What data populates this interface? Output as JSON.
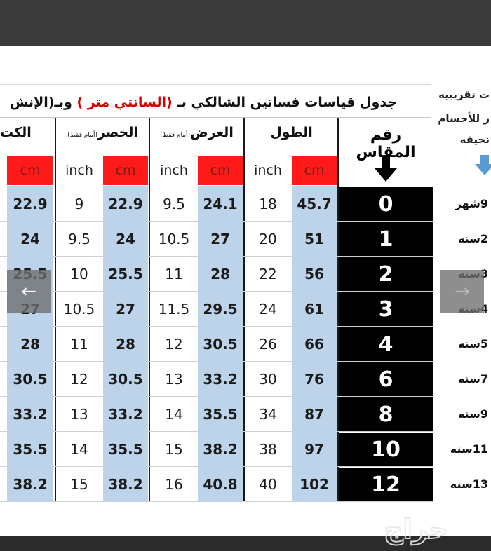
{
  "title": {
    "part1": "جدول قياسات فساتين الشالكي بـ",
    "red": "(السانتي متر )",
    "part2": "وبـ(الإنش"
  },
  "right_header": {
    "line1": "ت تقريبيه",
    "line2": "ر للأجسام",
    "line3": "نحيفه"
  },
  "size_header": "رقم المقاس",
  "columns": {
    "length": {
      "label": "الطول",
      "note": ""
    },
    "width": {
      "label": "العرض",
      "note": "(أمام فقط)"
    },
    "waist": {
      "label": "الخصر",
      "note": "(أمام فقط)"
    },
    "shoulder": {
      "label": "الكت",
      "note": ""
    }
  },
  "units": {
    "cm": "cm",
    "inch": "inch"
  },
  "rows": [
    {
      "size": "0",
      "age": "9شهر",
      "length_cm": "45.7",
      "length_in": "18",
      "width_cm": "24.1",
      "width_in": "9.5",
      "waist_cm": "22.9",
      "waist_in": "9",
      "shoulder_cm": "22.9"
    },
    {
      "size": "1",
      "age": "2سنه",
      "length_cm": "51",
      "length_in": "20",
      "width_cm": "27",
      "width_in": "10.5",
      "waist_cm": "24",
      "waist_in": "9.5",
      "shoulder_cm": "24"
    },
    {
      "size": "2",
      "age": "3سنه",
      "length_cm": "56",
      "length_in": "22",
      "width_cm": "28",
      "width_in": "11",
      "waist_cm": "25.5",
      "waist_in": "10",
      "shoulder_cm": "25.5"
    },
    {
      "size": "3",
      "age": "4سنه",
      "length_cm": "61",
      "length_in": "24",
      "width_cm": "29.5",
      "width_in": "11.5",
      "waist_cm": "27",
      "waist_in": "10.5",
      "shoulder_cm": "27"
    },
    {
      "size": "4",
      "age": "5سنه",
      "length_cm": "66",
      "length_in": "26",
      "width_cm": "30.5",
      "width_in": "12",
      "waist_cm": "28",
      "waist_in": "11",
      "shoulder_cm": "28"
    },
    {
      "size": "6",
      "age": "7سنه",
      "length_cm": "76",
      "length_in": "30",
      "width_cm": "33.2",
      "width_in": "13",
      "waist_cm": "30.5",
      "waist_in": "12",
      "shoulder_cm": "30.5"
    },
    {
      "size": "8",
      "age": "9سنه",
      "length_cm": "87",
      "length_in": "34",
      "width_cm": "35.5",
      "width_in": "14",
      "waist_cm": "33.2",
      "waist_in": "13",
      "shoulder_cm": "33.2"
    },
    {
      "size": "10",
      "age": "11سنه",
      "length_cm": "97",
      "length_in": "38",
      "width_cm": "38.2",
      "width_in": "15",
      "waist_cm": "35.5",
      "waist_in": "14",
      "shoulder_cm": "35.5"
    },
    {
      "size": "12",
      "age": "13سنه",
      "length_cm": "102",
      "length_in": "40",
      "width_cm": "40.8",
      "width_in": "16",
      "waist_cm": "38.2",
      "waist_in": "15",
      "shoulder_cm": "38.2"
    }
  ],
  "nav": {
    "prev": "←",
    "next": "→"
  },
  "watermark": "حراج",
  "colors": {
    "cm_header": "#ff1a1a",
    "cm_cells": "#bcd3ea",
    "size_cells": "#000000",
    "arrow_blue": "#5b9bd5"
  }
}
